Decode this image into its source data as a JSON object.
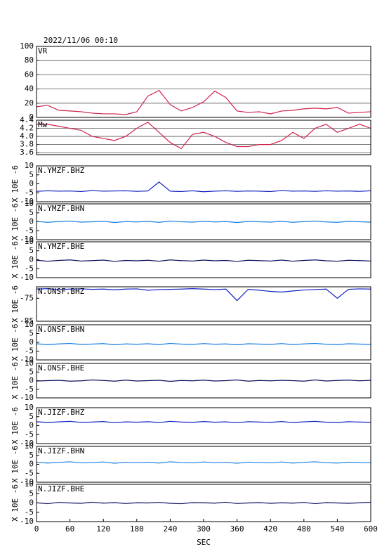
{
  "chart_data": [
    {
      "type": "line",
      "title": "2022/11/06  00:10",
      "name": "VR",
      "color": "#d0204a",
      "grid": true,
      "xlim": [
        0,
        600
      ],
      "ylim": [
        0,
        100
      ],
      "yticks": [
        0,
        20,
        40,
        60,
        80,
        100
      ],
      "x": [
        0,
        20,
        40,
        60,
        80,
        100,
        120,
        140,
        160,
        180,
        200,
        220,
        240,
        260,
        280,
        300,
        320,
        340,
        360,
        380,
        400,
        420,
        440,
        460,
        480,
        500,
        520,
        540,
        560,
        580,
        600
      ],
      "values": [
        15,
        17,
        10,
        9,
        8,
        6,
        5,
        5,
        4,
        8,
        30,
        38,
        18,
        9,
        14,
        22,
        37,
        28,
        9,
        7,
        8,
        5,
        9,
        10,
        12,
        13,
        12,
        14,
        6,
        7,
        8
      ]
    },
    {
      "type": "line",
      "name": "Mw",
      "color": "#d0204a",
      "grid": true,
      "xlim": [
        0,
        600
      ],
      "ylim": [
        3.55,
        4.4
      ],
      "yticks": [
        3.6,
        3.8,
        {
          "value": 4,
          "label": "4.0"
        },
        4.2,
        4.4
      ],
      "x": [
        0,
        20,
        40,
        60,
        80,
        100,
        120,
        140,
        160,
        180,
        200,
        220,
        240,
        260,
        280,
        300,
        320,
        340,
        360,
        380,
        400,
        420,
        440,
        460,
        480,
        500,
        520,
        540,
        560,
        580,
        600
      ],
      "values": [
        4.3,
        4.3,
        4.25,
        4.2,
        4.15,
        4.0,
        3.95,
        3.9,
        4.0,
        4.2,
        4.35,
        4.1,
        3.85,
        3.7,
        4.05,
        4.1,
        4.0,
        3.85,
        3.75,
        3.75,
        3.8,
        3.8,
        3.9,
        4.1,
        3.95,
        4.2,
        4.3,
        4.1,
        4.2,
        4.3,
        4.2
      ]
    },
    {
      "type": "line",
      "name": "N.YMZF.BHZ",
      "ylabel": "X 10E -6",
      "color": "#1020c0",
      "grid": false,
      "xlim": [
        0,
        600
      ],
      "ylim": [
        -10,
        10
      ],
      "yticks": [
        -10,
        -5,
        0,
        5,
        10
      ],
      "x": [
        0,
        20,
        40,
        60,
        80,
        100,
        120,
        140,
        160,
        180,
        200,
        220,
        240,
        260,
        280,
        300,
        320,
        340,
        360,
        380,
        400,
        420,
        440,
        460,
        480,
        500,
        520,
        540,
        560,
        580,
        600
      ],
      "values": [
        -4.2,
        -3.9,
        -4.1,
        -4.0,
        -4.3,
        -3.8,
        -4.1,
        -4.0,
        -3.9,
        -4.2,
        -4.0,
        1.0,
        -4.1,
        -4.3,
        -3.9,
        -4.4,
        -4.1,
        -3.9,
        -4.2,
        -4.0,
        -4.1,
        -4.3,
        -3.8,
        -4.1,
        -4.0,
        -4.2,
        -3.9,
        -4.1,
        -4.0,
        -4.2,
        -3.9
      ]
    },
    {
      "type": "line",
      "name": "N.YMZF.BHN",
      "ylabel": "X 10E -6",
      "color": "#1a7fe0",
      "grid": false,
      "xlim": [
        0,
        600
      ],
      "ylim": [
        -10,
        10
      ],
      "yticks": [
        -10,
        -5,
        0,
        5,
        10
      ],
      "x": [
        0,
        20,
        40,
        60,
        80,
        100,
        120,
        140,
        160,
        180,
        200,
        220,
        240,
        260,
        280,
        300,
        320,
        340,
        360,
        380,
        400,
        420,
        440,
        460,
        480,
        500,
        520,
        540,
        560,
        580,
        600
      ],
      "values": [
        0.2,
        -0.3,
        0.1,
        0.4,
        -0.2,
        0.0,
        0.3,
        -0.4,
        0.1,
        -0.1,
        0.2,
        -0.3,
        0.4,
        0.0,
        -0.2,
        0.3,
        -0.1,
        0.1,
        -0.4,
        0.2,
        0.0,
        -0.2,
        0.3,
        -0.3,
        0.1,
        0.4,
        -0.1,
        -0.3,
        0.2,
        0.0,
        -0.2
      ]
    },
    {
      "type": "line",
      "name": "N.YMZF.BHE",
      "ylabel": "X 10E -6",
      "color": "#101060",
      "grid": false,
      "xlim": [
        0,
        600
      ],
      "ylim": [
        -10,
        10
      ],
      "yticks": [
        -10,
        -5,
        0,
        5,
        10
      ],
      "x": [
        0,
        20,
        40,
        60,
        80,
        100,
        120,
        140,
        160,
        180,
        200,
        220,
        240,
        260,
        280,
        300,
        320,
        340,
        360,
        380,
        400,
        420,
        440,
        460,
        480,
        500,
        520,
        540,
        560,
        580,
        600
      ],
      "values": [
        -0.3,
        -0.8,
        -0.4,
        -0.1,
        -0.7,
        -0.5,
        -0.2,
        -0.9,
        -0.4,
        -0.6,
        -0.3,
        -0.8,
        -0.1,
        -0.5,
        -0.7,
        -0.2,
        -0.6,
        -0.4,
        -0.9,
        -0.3,
        -0.5,
        -0.7,
        -0.2,
        -0.8,
        -0.4,
        -0.1,
        -0.6,
        -0.8,
        -0.3,
        -0.5,
        -0.7
      ]
    },
    {
      "type": "line",
      "name": "N.ONSF.BHZ",
      "ylabel": "X 10E -6",
      "color": "#1020c0",
      "grid": false,
      "xlim": [
        0,
        600
      ],
      "ylim": [
        -85,
        -70
      ],
      "yticks": [
        -85,
        -75
      ],
      "x": [
        0,
        20,
        40,
        60,
        80,
        100,
        120,
        140,
        160,
        180,
        200,
        220,
        240,
        260,
        280,
        300,
        320,
        340,
        360,
        380,
        400,
        420,
        440,
        460,
        480,
        500,
        520,
        540,
        560,
        580,
        600
      ],
      "values": [
        -71,
        -70.8,
        -71.2,
        -71,
        -70.9,
        -71.1,
        -71,
        -71.3,
        -71,
        -70.9,
        -71.5,
        -71.2,
        -71.1,
        -71,
        -70.8,
        -71,
        -71.2,
        -71,
        -76,
        -71.1,
        -71.5,
        -72,
        -72.3,
        -71.8,
        -71.4,
        -71.2,
        -71,
        -75,
        -71.1,
        -70.9,
        -71
      ]
    },
    {
      "type": "line",
      "name": "N.ONSF.BHN",
      "ylabel": "X 10E -6",
      "color": "#1a7fe0",
      "grid": false,
      "xlim": [
        0,
        600
      ],
      "ylim": [
        -10,
        10
      ],
      "yticks": [
        -10,
        -5,
        0,
        5,
        10
      ],
      "x": [
        0,
        20,
        40,
        60,
        80,
        100,
        120,
        140,
        160,
        180,
        200,
        220,
        240,
        260,
        280,
        300,
        320,
        340,
        360,
        380,
        400,
        420,
        440,
        460,
        480,
        500,
        520,
        540,
        560,
        580,
        600
      ],
      "values": [
        -0.8,
        -1.3,
        -0.9,
        -0.6,
        -1.2,
        -1.0,
        -0.7,
        -1.4,
        -0.9,
        -1.1,
        -0.8,
        -1.3,
        -0.6,
        -1.0,
        -1.2,
        -0.7,
        -1.1,
        -0.9,
        -1.4,
        -0.8,
        -1.0,
        -1.2,
        -0.7,
        -1.3,
        -0.9,
        -0.6,
        -1.1,
        -1.3,
        -0.8,
        -1.0,
        -1.2
      ]
    },
    {
      "type": "line",
      "name": "N.ONSF.BHE",
      "ylabel": "X 10E -6",
      "color": "#101060",
      "grid": false,
      "xlim": [
        0,
        600
      ],
      "ylim": [
        -10,
        10
      ],
      "yticks": [
        -10,
        -5,
        0,
        5,
        10
      ],
      "x": [
        0,
        20,
        40,
        60,
        80,
        100,
        120,
        140,
        160,
        180,
        200,
        220,
        240,
        260,
        280,
        300,
        320,
        340,
        360,
        380,
        400,
        420,
        440,
        460,
        480,
        500,
        520,
        540,
        560,
        580,
        600
      ],
      "values": [
        -0.2,
        0.0,
        0.2,
        -0.3,
        -0.1,
        0.4,
        0.1,
        -0.3,
        0.3,
        -0.2,
        0.0,
        0.2,
        -0.4,
        0.1,
        -0.1,
        0.3,
        -0.2,
        0.0,
        0.4,
        -0.3,
        0.1,
        -0.1,
        0.2,
        0.0,
        -0.3,
        0.4,
        -0.2,
        0.1,
        0.3,
        -0.1,
        0.2
      ]
    },
    {
      "type": "line",
      "name": "N.JIZF.BHZ",
      "ylabel": "X 10E -6",
      "color": "#1020c0",
      "grid": false,
      "xlim": [
        0,
        600
      ],
      "ylim": [
        -10,
        10
      ],
      "yticks": [
        -10,
        -5,
        0,
        5,
        10
      ],
      "x": [
        0,
        20,
        40,
        60,
        80,
        100,
        120,
        140,
        160,
        180,
        200,
        220,
        240,
        260,
        280,
        300,
        320,
        340,
        360,
        380,
        400,
        420,
        440,
        460,
        480,
        500,
        520,
        540,
        560,
        580,
        600
      ],
      "values": [
        2.2,
        1.7,
        2.1,
        2.4,
        1.8,
        2.0,
        2.3,
        1.6,
        2.1,
        1.9,
        2.2,
        1.7,
        2.4,
        2.0,
        1.8,
        2.3,
        1.9,
        2.1,
        1.6,
        2.2,
        2.0,
        1.8,
        2.3,
        1.7,
        2.1,
        2.4,
        1.9,
        1.7,
        2.2,
        2.0,
        1.8
      ]
    },
    {
      "type": "line",
      "name": "N.JIZF.BHN",
      "ylabel": "X 10E -6",
      "color": "#1a7fe0",
      "grid": false,
      "xlim": [
        0,
        600
      ],
      "ylim": [
        -10,
        10
      ],
      "yticks": [
        -10,
        -5,
        0,
        5,
        10
      ],
      "x": [
        0,
        20,
        40,
        60,
        80,
        100,
        120,
        140,
        160,
        180,
        200,
        220,
        240,
        260,
        280,
        300,
        320,
        340,
        360,
        380,
        400,
        420,
        440,
        460,
        480,
        500,
        520,
        540,
        560,
        580,
        600
      ],
      "values": [
        1.2,
        0.7,
        1.1,
        1.4,
        0.8,
        1.0,
        1.3,
        0.6,
        1.1,
        0.9,
        1.2,
        0.7,
        1.4,
        1.0,
        0.8,
        1.3,
        0.9,
        1.1,
        0.6,
        1.2,
        1.0,
        0.8,
        1.3,
        0.7,
        1.1,
        1.4,
        0.9,
        0.7,
        1.2,
        1.0,
        0.8
      ]
    },
    {
      "type": "line",
      "name": "N.JIZF.BHE",
      "ylabel": "X 10E -6",
      "color": "#101060",
      "grid": false,
      "xlim": [
        0,
        600
      ],
      "ylim": [
        -10,
        10
      ],
      "yticks": [
        -10,
        -5,
        0,
        5,
        10
      ],
      "xlabel": "SEC",
      "xticks": [
        0,
        60,
        120,
        180,
        240,
        300,
        360,
        420,
        480,
        540,
        600
      ],
      "x": [
        0,
        20,
        40,
        60,
        80,
        100,
        120,
        140,
        160,
        180,
        200,
        220,
        240,
        260,
        280,
        300,
        320,
        340,
        360,
        380,
        400,
        420,
        440,
        460,
        480,
        500,
        520,
        540,
        560,
        580,
        600
      ],
      "values": [
        0.1,
        -0.4,
        0.3,
        0.0,
        -0.2,
        0.4,
        -0.1,
        0.2,
        -0.3,
        0.1,
        0.0,
        0.3,
        -0.2,
        -0.4,
        0.2,
        0.1,
        -0.1,
        0.4,
        -0.3,
        0.0,
        0.2,
        -0.2,
        0.1,
        -0.1,
        0.3,
        -0.4,
        0.2,
        0.0,
        -0.2,
        0.1,
        0.4
      ]
    }
  ]
}
